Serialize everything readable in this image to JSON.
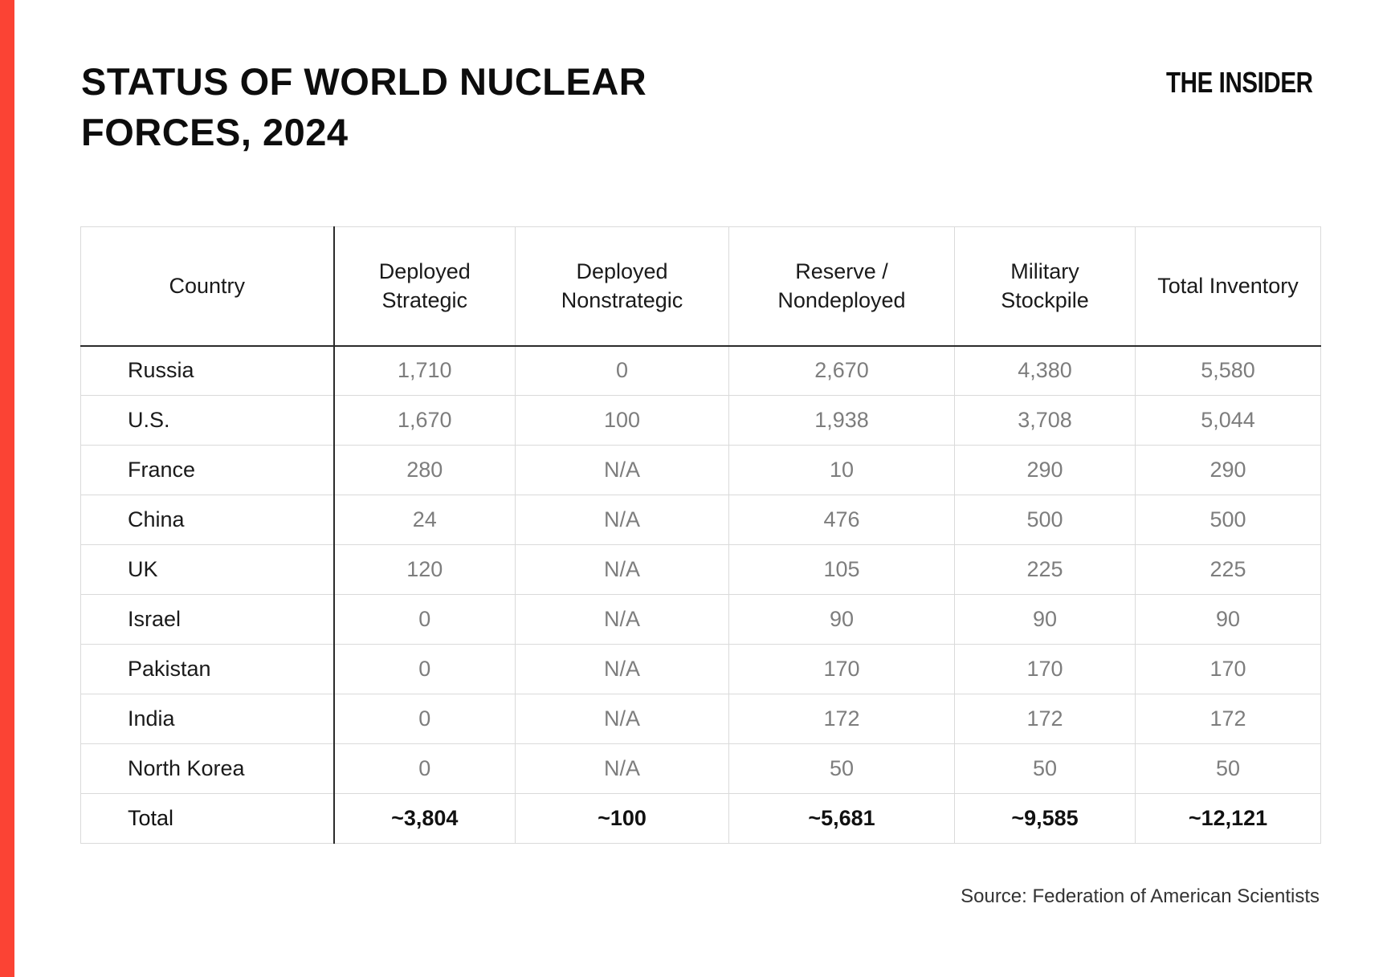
{
  "page": {
    "title_line1": "STATUS OF WORLD NUCLEAR",
    "title_line2": "FORCES, 2024",
    "logo": "THE INSIDER",
    "source": "Source: Federation of American Scientists"
  },
  "colors": {
    "accent_red": "#fb4334",
    "grid_light": "#dadada",
    "grid_dark": "#2b2b2b",
    "value_gray": "#7d7d7d",
    "text_black": "#111111"
  },
  "chart_data": {
    "type": "table",
    "title": "STATUS OF WORLD NUCLEAR FORCES, 2024",
    "columns": [
      "Country",
      "Deployed Strategic",
      "Deployed Nonstrategic",
      "Reserve / Nondeployed",
      "Military Stockpile",
      "Total Inventory"
    ],
    "rows": [
      [
        "Russia",
        "1,710",
        "0",
        "2,670",
        "4,380",
        "5,580"
      ],
      [
        "U.S.",
        "1,670",
        "100",
        "1,938",
        "3,708",
        "5,044"
      ],
      [
        "France",
        "280",
        "N/A",
        "10",
        "290",
        "290"
      ],
      [
        "China",
        "24",
        "N/A",
        "476",
        "500",
        "500"
      ],
      [
        "UK",
        "120",
        "N/A",
        "105",
        "225",
        "225"
      ],
      [
        "Israel",
        "0",
        "N/A",
        "90",
        "90",
        "90"
      ],
      [
        "Pakistan",
        "0",
        "N/A",
        "170",
        "170",
        "170"
      ],
      [
        "India",
        "0",
        "N/A",
        "172",
        "172",
        "172"
      ],
      [
        "North Korea",
        "0",
        "N/A",
        "50",
        "50",
        "50"
      ]
    ],
    "total_row": [
      "Total",
      "~3,804",
      "~100",
      "~5,681",
      "~9,585",
      "~12,121"
    ],
    "source": "Federation of American Scientists",
    "layout_hints": {
      "grid": "light horizontal and vertical rules, dark rule under header and after first column",
      "value_alignment": "center",
      "country_alignment": "left"
    }
  }
}
